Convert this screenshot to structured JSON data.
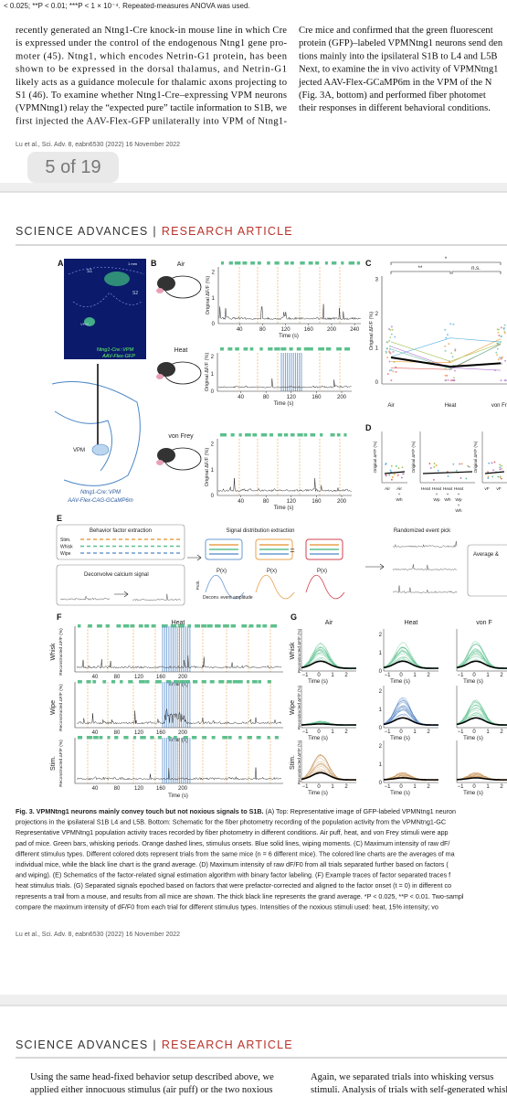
{
  "top_fragment": "< 0.025; **P < 0.01; ***P < 1 × 10⁻⁴. Repeated-measures ANOVA was used.",
  "page1": {
    "left_lines": [
      "recently generated an Ntng1-Cre knock-in mouse line in which Cre",
      "is expressed under the control of the endogenous Ntng1 gene pro-",
      "moter (45). Ntng1, which encodes Netrin-G1 protein, has been",
      "shown to be expressed in the dorsal thalamus, and Netrin-G1",
      "likely acts as a guidance molecule for thalamic axons projecting to",
      "S1 (46). To examine whether Ntng1-Cre–expressing VPM neurons",
      "(VPMNtng1) relay the “expected pure” tactile information to S1B, we",
      "first injected the AAV-Flex-GFP unilaterally into VPM of Ntng1-"
    ],
    "right_lines": [
      "Cre mice and confirmed that the green fluorescent",
      "protein (GFP)–labeled VPMNtng1 neurons send den",
      "tions mainly into the ipsilateral S1B to L4 and L5B",
      "Next, to examine the in vivo activity of VPMNtng1",
      "jected AAV-Flex-GCaMP6m in the VPM of the N",
      "(Fig. 3A, bottom) and performed fiber photomet",
      "their responses in different behavioral conditions."
    ],
    "footer": "Lu et al., Sci. Adv. 8, eabn6530 (2022)   16 November 2022"
  },
  "page_indicator": "5 of 19",
  "page2": {
    "journal": "SCIENCE ADVANCES",
    "separator": "|",
    "section": "RESEARCH ARTICLE",
    "figure": {
      "panel_letters": [
        "A",
        "B",
        "C",
        "D",
        "E",
        "F",
        "G"
      ],
      "a": {
        "scale": "1 mm",
        "regions": [
          "S1",
          "S2",
          "VPM"
        ],
        "image_label": [
          "Ntng1-Cre::VPM",
          "AAV-Flex-GFP"
        ],
        "schematic_target": "VPM",
        "schematic_label": [
          "Ntng1-Cre::VPM",
          "AAV-Flex-CAG-GCaMP6m"
        ]
      },
      "b": {
        "ylabel": "Original ΔF/F (%)",
        "xlabel": "Time (s)",
        "yticks": [
          "0",
          "1",
          "2"
        ],
        "rows": [
          {
            "stimulus": "Air",
            "xticks": [
              "40",
              "80",
              "120",
              "160",
              "200",
              "240"
            ]
          },
          {
            "stimulus": "Heat",
            "xticks": [
              "40",
              "80",
              "120",
              "160",
              "200"
            ]
          },
          {
            "stimulus": "von Frey",
            "xticks": [
              "40",
              "80",
              "120",
              "160",
              "200"
            ]
          }
        ]
      },
      "c": {
        "ylabel": "Original ΔF/F (%)",
        "yticks": [
          "0",
          "1",
          "2",
          "3"
        ],
        "categories": [
          "Air",
          "Heat",
          "von Fre"
        ],
        "significance": [
          "**",
          "*",
          "n.s."
        ]
      },
      "d": {
        "ylabel": "Original ΔF/F (%)",
        "groups": [
          [
            "Air"
          ],
          [
            "Air",
            "+",
            "Wh"
          ],
          [
            "Heat"
          ],
          [
            "Heat",
            "+",
            "Wp"
          ],
          [
            "Heat",
            "+",
            "Wh"
          ],
          [
            "Heat",
            "+",
            "Wp",
            "+",
            "Wh"
          ],
          [
            "vF"
          ],
          [
            "vF"
          ]
        ]
      },
      "e": {
        "box1_title": "Behavior factor extraction",
        "factors": [
          "Stim.",
          "Whisk",
          "Wipe"
        ],
        "deconv": "Deconvolve calcium signal",
        "box2_title": "Signal distribution extraction",
        "prob": "Prob.",
        "px": [
          "P(x)",
          "P(x)",
          "P(x)"
        ],
        "equals": "=",
        "deconv_axis": "Deconv. event amplitude",
        "box3_title": "Randomized event pick",
        "box4_title": "Average &"
      },
      "f": {
        "title": "Heat",
        "rows": [
          "Whisk",
          "Wipe",
          "Stim."
        ],
        "ylabel": "Reconstructed ΔF/F (%)",
        "xticks": [
          "40",
          "80",
          "120",
          "160",
          "200"
        ],
        "xlabel": "Time (s)"
      },
      "g": {
        "columns": [
          "Air",
          "Heat",
          "von F"
        ],
        "rows": [
          "Whisk",
          "Wipe",
          "Stim."
        ],
        "ylabel": "Reconstructed ΔF/F (%)",
        "xticks": [
          "−1",
          "0",
          "1",
          "2"
        ],
        "yticks": [
          "0",
          "1",
          "2"
        ],
        "xlabel": "Time (s)"
      }
    },
    "caption_title": "Fig. 3. VPMNtng1 neurons mainly convey touch but not noxious signals to S1B.",
    "caption_lines": [
      " (A) Top: Representative image of GFP-labeled VPMNtng1 neuron",
      "projections in the ipsilateral S1B L4 and L5B. Bottom: Schematic for the fiber photometry recording of the population activity from the VPMNtng1-GC",
      "Representative VPMNtng1 population activity traces recorded by fiber photometry in different conditions. Air puff, heat, and von Frey stimuli were app",
      "pad of mice. Green bars, whisking periods. Orange dashed lines, stimulus onsets. Blue solid lines, wiping moments. (C) Maximum intensity of raw dF/",
      "different stimulus types. Different colored dots represent trials from the same mice (n = 6 different mice). The colored line charts are the averages of ma",
      "individual mice, while the black line chart is the grand average. (D) Maximum intensity of raw dF/F0 from all trials separated further based on factors (",
      "and wiping). (E) Schematics of the factor-related signal estimation algorithm with binary factor labeling. (F) Example traces of factor separated traces f",
      "heat stimulus trials. (G) Separated signals epoched based on factors that were prefactor-corrected and aligned to the factor onset (t = 0) in different co",
      "represents a trail from a mouse, and results from all mice are shown. The thick black line represents the grand average. *P < 0.025, **P < 0.01. Two-sampl",
      "compare the maximum intensity of dF/F0 from each trial for different stimulus types. Intensities of the noxious stimuli used: heat, 15% intensity; vo"
    ],
    "footer": "Lu et al., Sci. Adv. 8, eabn6530 (2022)   16 November 2022"
  },
  "page3": {
    "journal": "SCIENCE ADVANCES",
    "separator": "|",
    "section": "RESEARCH ARTICLE",
    "left_lines": [
      "Using the same head-fixed behavior setup described above, we",
      "applied either innocuous stimulus (air puff) or the two noxious"
    ],
    "right_lines": [
      "Again, we separated trials into whisking versus",
      "stimuli. Analysis of trials with self-generated whiskin"
    ]
  }
}
